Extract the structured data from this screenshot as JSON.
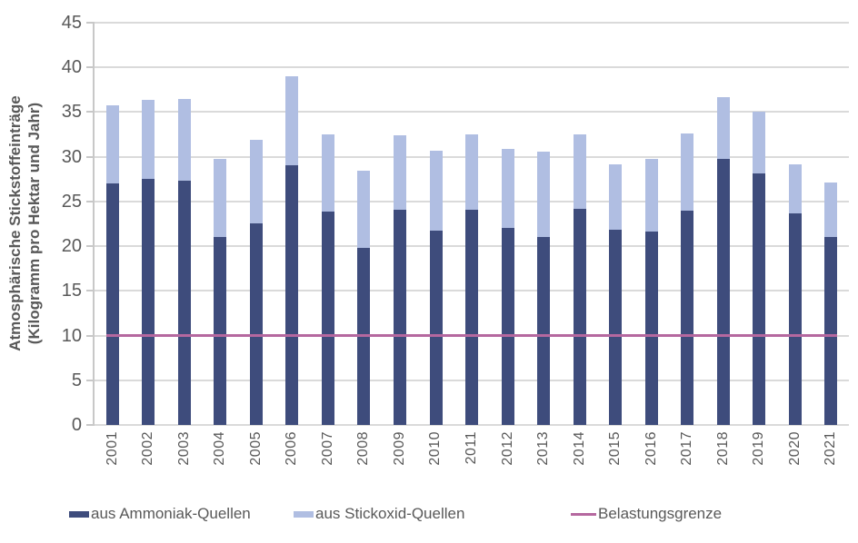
{
  "chart_data": {
    "type": "bar",
    "stacked": true,
    "title": "",
    "ylabel_lines": [
      "Atmosphärische Stickstoffeinträge",
      "(Kilogramm pro Hektar und Jahr)"
    ],
    "categories": [
      "2001",
      "2002",
      "2003",
      "2004",
      "2005",
      "2006",
      "2007",
      "2008",
      "2009",
      "2010",
      "2011",
      "2012",
      "2013",
      "2014",
      "2015",
      "2016",
      "2017",
      "2018",
      "2019",
      "2020",
      "2021"
    ],
    "series": [
      {
        "name": "aus Ammoniak-Quellen",
        "color": "#3E4C7C",
        "values": [
          27.0,
          27.5,
          27.3,
          21.0,
          22.6,
          29.1,
          23.9,
          19.8,
          24.1,
          21.7,
          24.1,
          22.0,
          21.0,
          24.2,
          21.8,
          21.6,
          24.0,
          29.8,
          28.1,
          23.7,
          21.0
        ]
      },
      {
        "name": "aus Stickoxid-Quellen",
        "color": "#B0BEE2",
        "values": [
          8.8,
          8.9,
          9.2,
          8.8,
          9.3,
          9.9,
          8.6,
          8.6,
          8.3,
          9.0,
          8.4,
          8.9,
          9.6,
          8.3,
          7.4,
          8.2,
          8.6,
          6.9,
          6.9,
          5.5,
          6.1
        ]
      }
    ],
    "reference_line": {
      "name": "Belastungsgrenze",
      "value": 10,
      "color": "#B5689F"
    },
    "ylim": [
      0,
      45
    ],
    "y_ticks": [
      45,
      40,
      35,
      30,
      25,
      20,
      15,
      10,
      5,
      0
    ],
    "grid": true,
    "legend_position": "bottom",
    "axis_text_color": "#595959",
    "gridline_color": "#DADADA"
  }
}
